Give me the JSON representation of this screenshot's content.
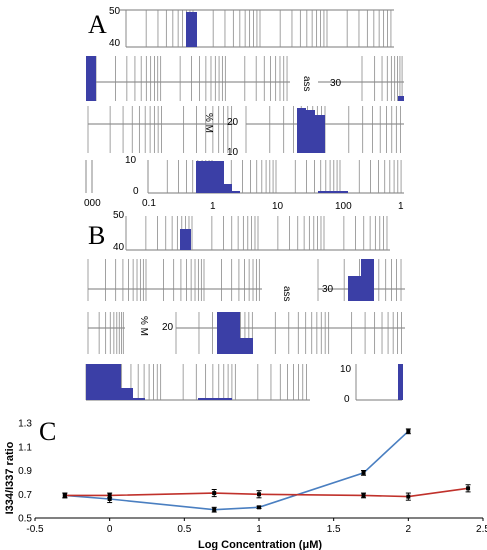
{
  "panels": {
    "a": "A",
    "b": "B",
    "c": "C"
  },
  "histogram_labels": {
    "a_y_ticks": [
      "50",
      "40",
      "30",
      "20",
      "10",
      "0"
    ],
    "a_x_ticks": [
      "000",
      "0.1",
      "1",
      "10",
      "100",
      "1"
    ],
    "a_ylabel_fragments": [
      "% M",
      "ass"
    ],
    "b_y_ticks": [
      "50",
      "40",
      "30",
      "20",
      "10",
      "0"
    ],
    "b_ylabel_fragments": [
      "% M",
      "ass"
    ]
  },
  "colors": {
    "bar": "#3b3fa6",
    "series_blue": "#4a7fc1",
    "series_red": "#c0312b",
    "grid": "#8a8a8a"
  },
  "chart_data": {
    "type": "line",
    "title": "",
    "xlabel": "Log Concentration (μM)",
    "ylabel": "I334/I337 ratio",
    "xlim": [
      -0.5,
      2.5
    ],
    "ylim": [
      0.5,
      1.3
    ],
    "x_ticks": [
      "-0.5",
      "0",
      "0.5",
      "1",
      "1.5",
      "2",
      "2.5"
    ],
    "y_ticks": [
      "0.5",
      "0.7",
      "0.9",
      "1.1",
      "1.3"
    ],
    "grid": false,
    "series": [
      {
        "color": "#4a7fc1",
        "x": [
          -0.3,
          0,
          0.7,
          1,
          1.7,
          2
        ],
        "y": [
          0.69,
          0.66,
          0.57,
          0.59,
          0.88,
          1.23
        ],
        "err": [
          0.02,
          0.03,
          0.02,
          0.01,
          0.02,
          0.02
        ]
      },
      {
        "color": "#c0312b",
        "x": [
          -0.3,
          0,
          0.7,
          1,
          1.7,
          2,
          2.4
        ],
        "y": [
          0.69,
          0.69,
          0.71,
          0.7,
          0.69,
          0.68,
          0.75
        ],
        "err": [
          0.02,
          0.02,
          0.03,
          0.03,
          0.02,
          0.03,
          0.03
        ]
      }
    ]
  }
}
